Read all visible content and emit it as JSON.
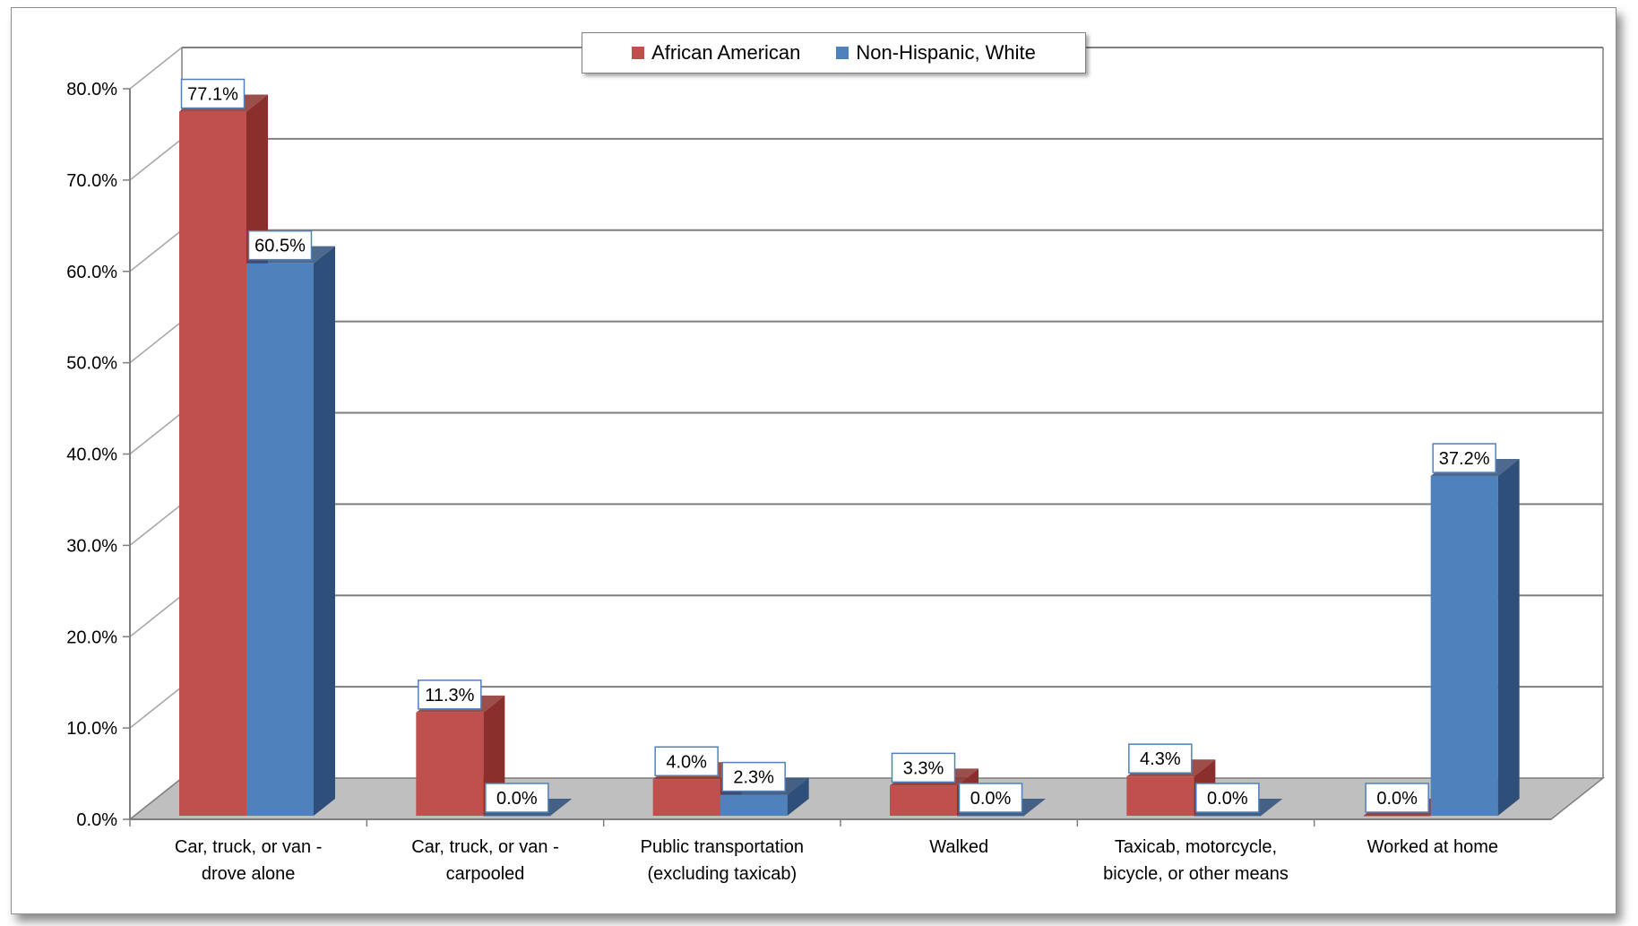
{
  "chart_data": {
    "type": "bar",
    "categories": [
      [
        "Car, truck, or van -",
        "drove alone"
      ],
      [
        "Car, truck, or van -",
        "carpooled"
      ],
      [
        "Public transportation",
        "(excluding taxicab)"
      ],
      [
        "Walked"
      ],
      [
        "Taxicab, motorcycle,",
        "bicycle,  or other means"
      ],
      [
        "Worked at home"
      ]
    ],
    "series": [
      {
        "name": "African American",
        "color": "#C0504D",
        "side_color": "#8B2F2C",
        "values": [
          77.1,
          11.3,
          4.0,
          3.3,
          4.3,
          0.0
        ],
        "labels": [
          "77.1%",
          "11.3%",
          "4.0%",
          "3.3%",
          "4.3%",
          "0.0%"
        ]
      },
      {
        "name": "Non-Hispanic, White",
        "color": "#4F81BD",
        "side_color": "#2E4F7A",
        "values": [
          60.5,
          0.0,
          2.3,
          0.0,
          0.0,
          37.2
        ],
        "labels": [
          "60.5%",
          "0.0%",
          "2.3%",
          "0.0%",
          "0.0%",
          "37.2%"
        ]
      }
    ],
    "y_ticks": [
      "0.0%",
      "10.0%",
      "20.0%",
      "30.0%",
      "40.0%",
      "50.0%",
      "60.0%",
      "70.0%",
      "80.0%"
    ],
    "ylim": [
      0,
      80
    ],
    "grid": true,
    "legend_position": "top-center",
    "floor_color": "#BFBFBF"
  }
}
